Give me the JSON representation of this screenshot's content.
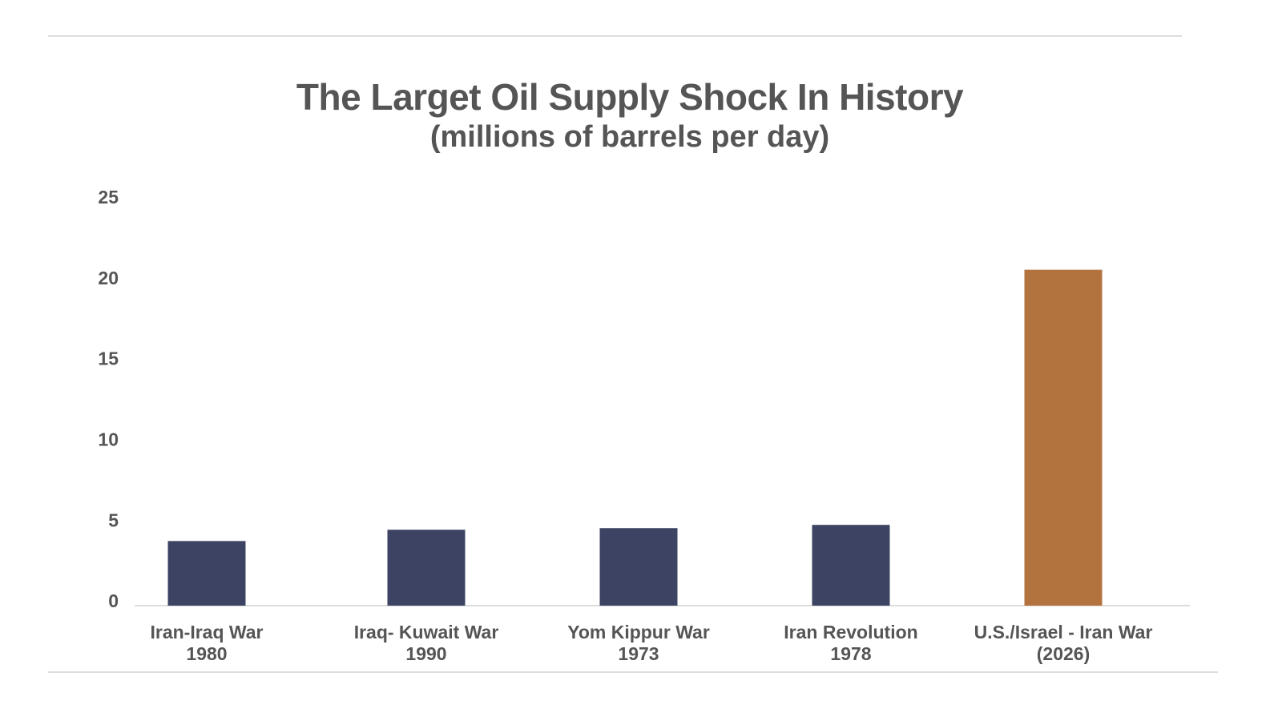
{
  "chart_data": {
    "type": "bar",
    "title": "The Larget Oil Supply Shock In History",
    "subtitle": "(millions of barrels per day)",
    "categories": [
      [
        "Iran-Iraq War",
        "1980"
      ],
      [
        "Iraq- Kuwait War",
        "1990"
      ],
      [
        "Yom Kippur War",
        "1973"
      ],
      [
        "Iran Revolution",
        "1978"
      ],
      [
        "U.S./Israel - Iran War",
        "(2026)"
      ]
    ],
    "values": [
      4.0,
      4.7,
      4.8,
      5.0,
      20.8
    ],
    "colors": [
      "#3d4463",
      "#3d4463",
      "#3d4463",
      "#3d4463",
      "#b3733e"
    ],
    "ylim": [
      0,
      25
    ],
    "yticks": [
      "0",
      "5",
      "10",
      "15",
      "20",
      "25"
    ],
    "grid": false,
    "legend": "none"
  }
}
